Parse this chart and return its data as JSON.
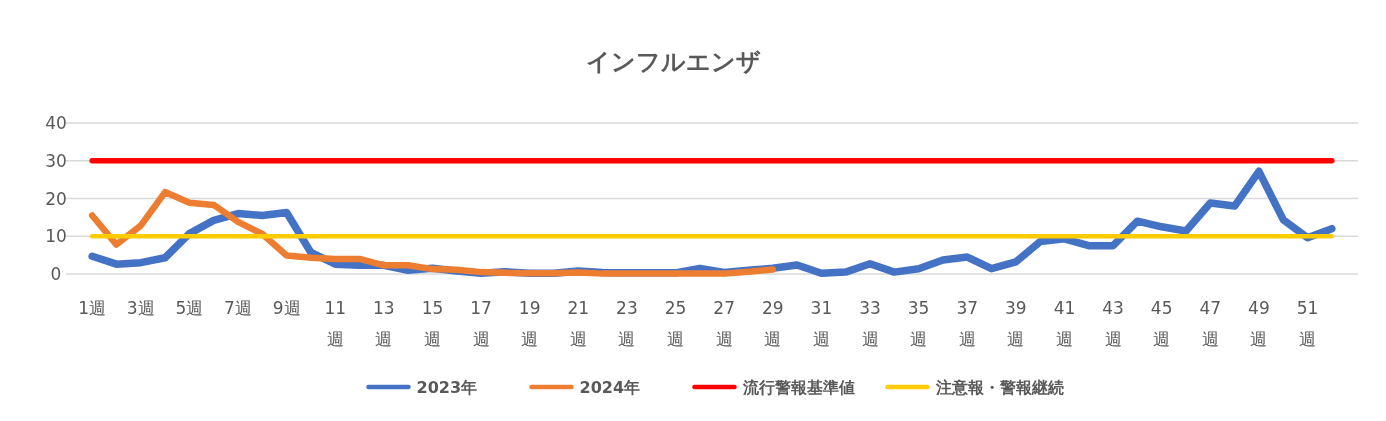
{
  "chart_data": {
    "type": "line",
    "title": "インフルエンザ",
    "categories": [
      "1週",
      null,
      "3週",
      null,
      "5週",
      null,
      "7週",
      null,
      "9週",
      null,
      "11週",
      null,
      "13週",
      null,
      "15週",
      null,
      "17週",
      null,
      "19週",
      null,
      "21週",
      null,
      "23週",
      null,
      "25週",
      null,
      "27週",
      null,
      "29週",
      null,
      "31週",
      null,
      "33週",
      null,
      "35週",
      null,
      "37週",
      null,
      "39週",
      null,
      "41週",
      null,
      "43週",
      null,
      "45週",
      null,
      "47週",
      null,
      "49週",
      null,
      "51週",
      null
    ],
    "series": [
      {
        "name": "2023年",
        "color": "#4472c4",
        "values": [
          4.7,
          2.6,
          3,
          4.3,
          10.7,
          14.2,
          16,
          15.5,
          16.3,
          5.7,
          2.6,
          2.3,
          2.3,
          1,
          1.5,
          0.8,
          0.2,
          0.6,
          0.2,
          0.2,
          0.8,
          0.4,
          0.3,
          0.3,
          0.3,
          1.5,
          0.4,
          1,
          1.5,
          2.4,
          0.2,
          0.5,
          2.7,
          0.5,
          1.4,
          3.7,
          4.5,
          1.4,
          3.2,
          8.6,
          9.3,
          7.5,
          7.5,
          14,
          12.5,
          11.4,
          18.8,
          18,
          27.2,
          14.4,
          9.6,
          12
        ]
      },
      {
        "name": "2024年",
        "color": "#ed7d31",
        "values": [
          15.5,
          7.8,
          12.8,
          21.7,
          18.9,
          18.3,
          13.8,
          10.6,
          4.9,
          4.3,
          4,
          4,
          2.3,
          2.3,
          1.3,
          1.1,
          0.5,
          0.3,
          0.2,
          0.2,
          0.4,
          0.1,
          0.1,
          0.1,
          0.1,
          0.1,
          0.1,
          0.6,
          1.2,
          null,
          null,
          null,
          null,
          null,
          null,
          null,
          null,
          null,
          null,
          null,
          null,
          null,
          null,
          null,
          null,
          null,
          null,
          null,
          null,
          null,
          null,
          null
        ]
      },
      {
        "name": "流行警報基準値",
        "color": "#ff0000",
        "values": [
          30,
          30,
          30,
          30,
          30,
          30,
          30,
          30,
          30,
          30,
          30,
          30,
          30,
          30,
          30,
          30,
          30,
          30,
          30,
          30,
          30,
          30,
          30,
          30,
          30,
          30,
          30,
          30,
          30,
          30,
          30,
          30,
          30,
          30,
          30,
          30,
          30,
          30,
          30,
          30,
          30,
          30,
          30,
          30,
          30,
          30,
          30,
          30,
          30,
          30,
          30,
          30
        ]
      },
      {
        "name": "注意報・警報継続",
        "color": "#ffcc00",
        "values": [
          10,
          10,
          10,
          10,
          10,
          10,
          10,
          10,
          10,
          10,
          10,
          10,
          10,
          10,
          10,
          10,
          10,
          10,
          10,
          10,
          10,
          10,
          10,
          10,
          10,
          10,
          10,
          10,
          10,
          10,
          10,
          10,
          10,
          10,
          10,
          10,
          10,
          10,
          10,
          10,
          10,
          10,
          10,
          10,
          10,
          10,
          10,
          10,
          10,
          10,
          10,
          10
        ]
      }
    ],
    "ylim": [
      0,
      40
    ],
    "yticks": [
      0,
      10,
      20,
      30,
      40
    ],
    "grid": "y",
    "legend": "bottom",
    "marker": "none",
    "line_style": "solid"
  }
}
